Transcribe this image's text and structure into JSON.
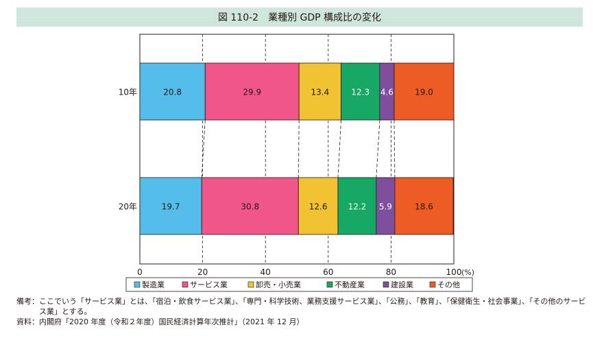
{
  "title": "図 110-2　業種別 GDP 構成比の変化",
  "chart_data": {
    "type": "bar",
    "orientation": "horizontal",
    "stacked": true,
    "categories": [
      "10年",
      "20年"
    ],
    "series": [
      {
        "name": "製造業",
        "color": "#55bde9",
        "values": [
          20.8,
          19.7
        ]
      },
      {
        "name": "サービス業",
        "color": "#f0568a",
        "values": [
          29.9,
          30.8
        ]
      },
      {
        "name": "卸売・小売業",
        "color": "#f1c232",
        "values": [
          13.4,
          12.6
        ]
      },
      {
        "name": "不動産業",
        "color": "#17a865",
        "values": [
          12.3,
          12.2
        ]
      },
      {
        "name": "建設業",
        "color": "#7f4f9e",
        "values": [
          4.6,
          5.9
        ]
      },
      {
        "name": "その他",
        "color": "#ee5c26",
        "values": [
          19.0,
          18.6
        ]
      }
    ],
    "xlim": [
      0,
      100
    ],
    "xticks": [
      "0",
      "20",
      "40",
      "60",
      "80",
      "100"
    ],
    "xunit": "(%)",
    "label_colors": [
      "#231815",
      "#231815",
      "#231815",
      "#ffffff",
      "#ffffff",
      "#231815"
    ],
    "grid": "dashed vertical",
    "legend_position": "bottom"
  },
  "notes": [
    {
      "label": "備考：",
      "text": "ここでいう「サービス業」とは、「宿泊・飲食サービス業」、「専門・科学技術、業務支援サービス業」、「公務」、「教育」、「保健衛生・社会事業」、「その他のサービス業」とする。"
    },
    {
      "label": "資料：",
      "text": "内閣府「2020 年度（令和２年度）国民経済計算年次推計」（2021 年 12 月）"
    }
  ]
}
